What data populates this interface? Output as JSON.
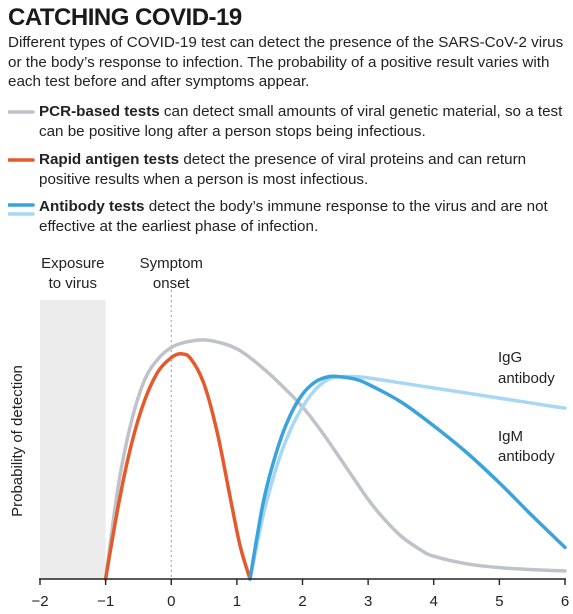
{
  "header": {
    "title": "CATCHING COVID-19",
    "subtitle": "Different types of COVID-19 test can detect the presence of the SARS-CoV-2 virus or the body’s response to infection. The probability of a positive result varies with each test before and after symptoms appear."
  },
  "legend": [
    {
      "bold": "PCR-based tests",
      "text": " can detect small amounts of viral genetic material, so a test can be positive long after a person stops being infectious.",
      "colors": [
        "#c0c2ca"
      ]
    },
    {
      "bold": "Rapid antigen tests",
      "text": " detect the presence of viral proteins and can return positive results when a person is most infectious.",
      "colors": [
        "#e55a2b"
      ]
    },
    {
      "bold": "Antibody tests",
      "text": " detect the body’s immune response to the virus and are not effective at the earliest phase of infection.",
      "colors": [
        "#3aa3dd",
        "#a7d8f3"
      ]
    }
  ],
  "colors": {
    "pcr": "#c0c2ca",
    "antigen": "#e55a2b",
    "igg": "#a7d8f3",
    "igm": "#3aa3dd",
    "exposure_shade": "#ececec",
    "axis": "#222222"
  },
  "chart_data": {
    "type": "line",
    "xlabel": "",
    "ylabel": "Probability of detection",
    "xlim": [
      -2,
      6
    ],
    "ylim": [
      0,
      1
    ],
    "x_ticks": [
      -2,
      -1,
      0,
      1,
      2,
      3,
      4,
      5,
      6
    ],
    "x_tick_labels": [
      "−2",
      "−1",
      "0",
      "1",
      "2",
      "3",
      "4",
      "5",
      "6"
    ],
    "grid": false,
    "annotations": {
      "exposure": {
        "label_lines": [
          "Exposure",
          "to virus"
        ],
        "x_range": [
          -2,
          -1
        ]
      },
      "symptom": {
        "label_lines": [
          "Symptom",
          "onset"
        ],
        "x": 0
      }
    },
    "series": [
      {
        "key": "pcr",
        "name": "",
        "x": [
          -1,
          -0.8,
          -0.6,
          -0.4,
          -0.2,
          0,
          0.2,
          0.5,
          0.8,
          1.0,
          1.2,
          1.5,
          1.8,
          2.0,
          2.2,
          2.5,
          2.8,
          3.0,
          3.2,
          3.5,
          3.8,
          4.0,
          4.5,
          5.0,
          5.5,
          6.0
        ],
        "y": [
          0.0,
          0.38,
          0.63,
          0.79,
          0.87,
          0.915,
          0.935,
          0.945,
          0.93,
          0.91,
          0.875,
          0.81,
          0.735,
          0.68,
          0.615,
          0.505,
          0.39,
          0.315,
          0.25,
          0.17,
          0.115,
          0.09,
          0.06,
          0.045,
          0.037,
          0.032
        ]
      },
      {
        "key": "antigen",
        "name": "",
        "x": [
          -1,
          -0.8,
          -0.6,
          -0.4,
          -0.2,
          0,
          0.15,
          0.3,
          0.5,
          0.7,
          0.9,
          1.05,
          1.2
        ],
        "y": [
          0.0,
          0.3,
          0.54,
          0.71,
          0.82,
          0.875,
          0.89,
          0.87,
          0.77,
          0.58,
          0.32,
          0.13,
          0.0
        ]
      },
      {
        "key": "igg",
        "name": "IgG antibody",
        "x": [
          1.2,
          1.4,
          1.6,
          1.8,
          2.0,
          2.2,
          2.4,
          2.6,
          2.8,
          3.0,
          3.5,
          4.0,
          4.5,
          5.0,
          5.5,
          6.0
        ],
        "y": [
          0.0,
          0.25,
          0.44,
          0.58,
          0.68,
          0.75,
          0.79,
          0.8,
          0.8,
          0.795,
          0.775,
          0.755,
          0.735,
          0.715,
          0.695,
          0.675
        ]
      },
      {
        "key": "igm",
        "name": "IgM antibody",
        "x": [
          1.2,
          1.4,
          1.6,
          1.8,
          2.0,
          2.2,
          2.4,
          2.55,
          2.8,
          3.0,
          3.5,
          4.0,
          4.5,
          5.0,
          5.5,
          6.0
        ],
        "y": [
          0.0,
          0.3,
          0.5,
          0.64,
          0.73,
          0.78,
          0.8,
          0.8,
          0.79,
          0.77,
          0.7,
          0.605,
          0.5,
          0.38,
          0.25,
          0.125
        ]
      }
    ],
    "series_labels": {
      "igg": [
        "IgG",
        "antibody"
      ],
      "igm": [
        "IgM",
        "antibody"
      ]
    }
  }
}
